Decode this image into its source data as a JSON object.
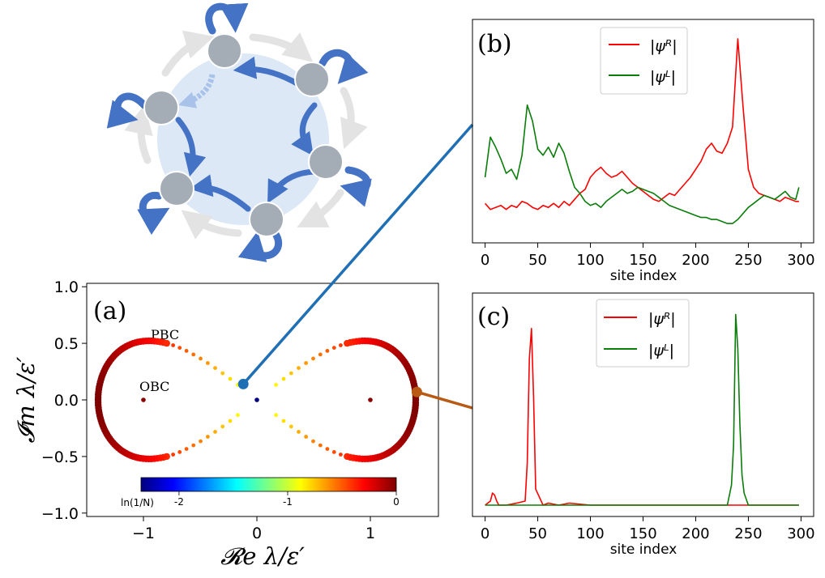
{
  "figure": {
    "colors": {
      "red": "#ff0000",
      "green": "#0a7d0a",
      "blue_link": "#1f6fb5",
      "orange_link": "#b85a14",
      "node": "#a4acb6",
      "arrow": "#4472c4",
      "disk": "#dce8f6"
    }
  },
  "chart_data": [
    {
      "panel": "(a)",
      "type": "scatter",
      "xlabel": "𝓡e λ/ε′",
      "ylabel": "𝓘m λ/ε′",
      "xlim": [
        -1.5,
        1.6
      ],
      "ylim": [
        -1.03,
        1.03
      ],
      "xticks": [
        -1,
        0,
        1
      ],
      "yticks": [
        -1.0,
        -0.5,
        0.0,
        0.5,
        1.0
      ],
      "annotations": [
        "PBC",
        "OBC"
      ],
      "colorbar": {
        "label": "ln(1/N)",
        "ticks": [
          -2,
          -1,
          0
        ],
        "range": [
          -2.35,
          0
        ],
        "colormap": "jet"
      },
      "pbc_curve": "lemniscate through (±1.4, 0) with |Im| max 0.5 near Re = ±1",
      "obc_points": [
        {
          "x": -1.0,
          "y": 0.0
        },
        {
          "x": 0.0,
          "y": 0.0
        },
        {
          "x": 1.0,
          "y": 0.0
        }
      ],
      "marked_points": [
        {
          "x": -0.12,
          "y": 0.14,
          "color": "blue"
        },
        {
          "x": 1.41,
          "y": 0.07,
          "color": "orange"
        }
      ]
    },
    {
      "panel": "(b)",
      "type": "line",
      "xlabel": "site index",
      "xticks": [
        0,
        50,
        100,
        150,
        200,
        250,
        300
      ],
      "xlim": [
        -12,
        312
      ],
      "ylim": [
        0,
        1
      ],
      "series": [
        {
          "name": "|ψᴿ|",
          "color": "#ff0000",
          "x": [
            0,
            5,
            10,
            15,
            20,
            25,
            30,
            35,
            40,
            45,
            50,
            55,
            60,
            65,
            70,
            75,
            80,
            85,
            90,
            95,
            100,
            105,
            110,
            115,
            120,
            125,
            130,
            135,
            140,
            145,
            150,
            155,
            160,
            165,
            170,
            175,
            180,
            185,
            190,
            195,
            200,
            205,
            210,
            215,
            220,
            225,
            230,
            235,
            240,
            245,
            250,
            255,
            260,
            265,
            270,
            275,
            280,
            285,
            290,
            295,
            298
          ],
          "values": [
            0.14,
            0.11,
            0.12,
            0.13,
            0.11,
            0.13,
            0.12,
            0.15,
            0.14,
            0.12,
            0.11,
            0.13,
            0.12,
            0.14,
            0.12,
            0.15,
            0.13,
            0.16,
            0.19,
            0.21,
            0.27,
            0.3,
            0.32,
            0.29,
            0.27,
            0.28,
            0.3,
            0.27,
            0.24,
            0.22,
            0.2,
            0.18,
            0.16,
            0.15,
            0.17,
            0.19,
            0.18,
            0.21,
            0.24,
            0.27,
            0.31,
            0.35,
            0.41,
            0.44,
            0.4,
            0.39,
            0.44,
            0.52,
            0.96,
            0.62,
            0.31,
            0.22,
            0.19,
            0.18,
            0.17,
            0.16,
            0.15,
            0.17,
            0.16,
            0.15,
            0.15
          ]
        },
        {
          "name": "|ψᴸ|",
          "color": "#0a7d0a",
          "x": [
            0,
            5,
            10,
            15,
            20,
            25,
            30,
            35,
            40,
            45,
            50,
            55,
            60,
            65,
            70,
            75,
            80,
            85,
            90,
            95,
            100,
            105,
            110,
            115,
            120,
            125,
            130,
            135,
            140,
            145,
            150,
            155,
            160,
            165,
            170,
            175,
            180,
            185,
            190,
            195,
            200,
            205,
            210,
            215,
            220,
            225,
            230,
            235,
            240,
            245,
            250,
            255,
            260,
            265,
            270,
            275,
            280,
            285,
            290,
            295,
            298
          ],
          "values": [
            0.27,
            0.47,
            0.42,
            0.36,
            0.29,
            0.31,
            0.26,
            0.38,
            0.63,
            0.55,
            0.41,
            0.38,
            0.42,
            0.37,
            0.44,
            0.39,
            0.3,
            0.22,
            0.19,
            0.15,
            0.13,
            0.14,
            0.12,
            0.15,
            0.17,
            0.19,
            0.21,
            0.19,
            0.2,
            0.22,
            0.21,
            0.2,
            0.19,
            0.17,
            0.15,
            0.13,
            0.12,
            0.11,
            0.1,
            0.09,
            0.08,
            0.07,
            0.07,
            0.06,
            0.06,
            0.05,
            0.04,
            0.04,
            0.06,
            0.09,
            0.12,
            0.14,
            0.16,
            0.18,
            0.17,
            0.16,
            0.18,
            0.2,
            0.17,
            0.16,
            0.22
          ]
        }
      ]
    },
    {
      "panel": "(c)",
      "type": "line",
      "xlabel": "site index",
      "xticks": [
        0,
        50,
        100,
        150,
        200,
        250,
        300
      ],
      "xlim": [
        -12,
        312
      ],
      "ylim": [
        0,
        1
      ],
      "series": [
        {
          "name": "|ψᴿ|",
          "color": "#ff0000",
          "x": [
            0,
            5,
            7,
            9,
            11,
            13,
            20,
            30,
            38,
            40,
            42,
            44,
            46,
            48,
            55,
            60,
            70,
            80,
            100,
            150,
            200,
            250,
            298
          ],
          "values": [
            0.0,
            0.02,
            0.06,
            0.05,
            0.02,
            0.0,
            0.0,
            0.01,
            0.02,
            0.21,
            0.73,
            0.88,
            0.54,
            0.08,
            0.0,
            0.01,
            0.0,
            0.01,
            0.0,
            0.0,
            0.0,
            0.0,
            0.0
          ]
        },
        {
          "name": "|ψᴸ|",
          "color": "#0a7d0a",
          "x": [
            0,
            100,
            200,
            230,
            234,
            236,
            238,
            240,
            242,
            244,
            246,
            250,
            260,
            298
          ],
          "values": [
            0.0,
            0.0,
            0.0,
            0.0,
            0.1,
            0.3,
            0.95,
            0.78,
            0.4,
            0.15,
            0.06,
            0.0,
            0.0,
            0.0
          ]
        }
      ]
    }
  ]
}
